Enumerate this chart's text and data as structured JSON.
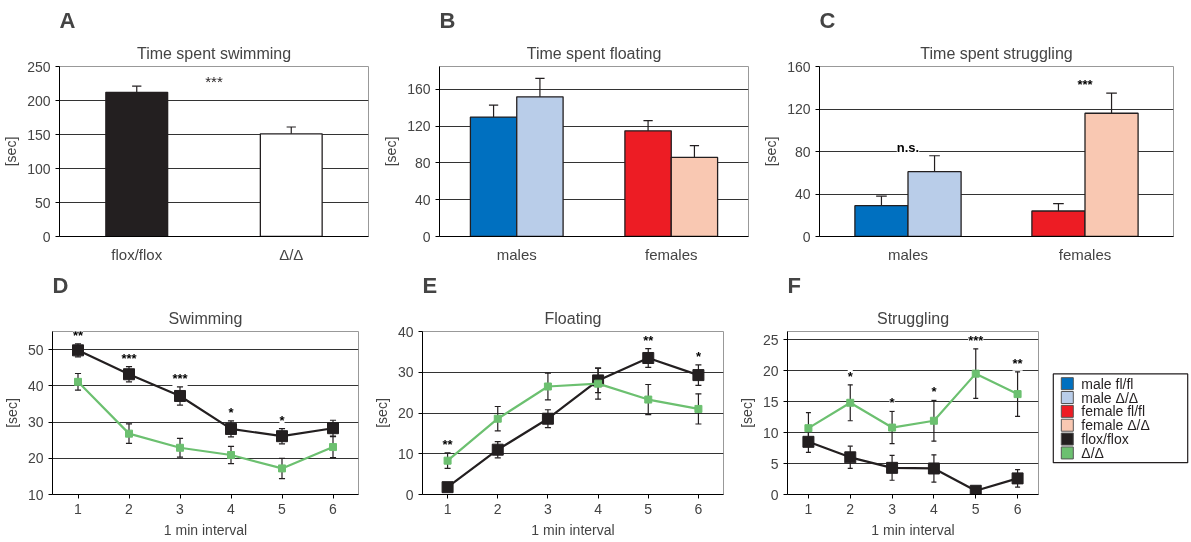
{
  "chart_data": [
    {
      "type": "bar",
      "title": "Time spent swimming",
      "ylabel": "[sec]",
      "categories": [
        "flox/flox",
        "Δ/Δ"
      ],
      "values": [
        212,
        151
      ],
      "errors": [
        9,
        10
      ],
      "colors": [
        "#231f20",
        "#ffffff"
      ],
      "ylim": [
        0,
        250
      ],
      "yticks": [
        0,
        50,
        100,
        150,
        200,
        250
      ],
      "grid": "y",
      "annotations": [
        "A",
        "***"
      ]
    },
    {
      "type": "bar",
      "title": "Time spent floating",
      "ylabel": "[sec]",
      "categories": [
        "males",
        "females"
      ],
      "ylim": [
        0,
        185
      ],
      "yticks": [
        0,
        40,
        80,
        120,
        160
      ],
      "grid": "y",
      "legend": "bottom right",
      "series": [
        {
          "name": "male fl/fl",
          "color": "#0070c0",
          "values": [
            130,
            null
          ],
          "errors": [
            13,
            null
          ]
        },
        {
          "name": "male Δ/Δ",
          "color": "#b9cde9",
          "values": [
            152,
            null
          ],
          "errors": [
            20,
            null
          ]
        },
        {
          "name": "female fl/fl",
          "color": "#ed1c24",
          "values": [
            null,
            115
          ],
          "errors": [
            null,
            11
          ]
        },
        {
          "name": "female Δ/Δ",
          "color": "#f9c8b2",
          "values": [
            null,
            86
          ],
          "errors": [
            null,
            13
          ]
        }
      ],
      "annotations": [
        "B"
      ]
    },
    {
      "type": "bar",
      "title": "Time spent struggling",
      "ylabel": "[sec]",
      "categories": [
        "males",
        "females"
      ],
      "ylim": [
        0,
        160
      ],
      "yticks": [
        0,
        40,
        80,
        120,
        160
      ],
      "grid": "y",
      "series": [
        {
          "color": "#0070c0",
          "values": [
            29,
            null
          ],
          "errors": [
            9,
            null
          ]
        },
        {
          "color": "#b9cde9",
          "values": [
            61,
            null
          ],
          "errors": [
            15,
            null
          ]
        },
        {
          "color": "#ed1c24",
          "values": [
            null,
            24
          ],
          "errors": [
            null,
            7
          ]
        },
        {
          "color": "#f9c8b2",
          "values": [
            null,
            116
          ],
          "errors": [
            null,
            19
          ]
        }
      ],
      "annotations": [
        "C",
        {
          "text": "n.s.",
          "x": "males",
          "y": 61
        },
        {
          "text": "***",
          "x": "females",
          "y": 116
        }
      ]
    },
    {
      "type": "line",
      "title": "Swimming",
      "xlabel": "1 min interval",
      "ylabel": "[sec]",
      "x": [
        1,
        2,
        3,
        4,
        5,
        6
      ],
      "xlim": [
        0.5,
        6.5
      ],
      "xticks": [
        1,
        2,
        3,
        4,
        5,
        6
      ],
      "ylim": [
        10,
        55
      ],
      "yticks": [
        10,
        20,
        30,
        40,
        50
      ],
      "grid": "y",
      "marker": "square",
      "series": [
        {
          "color": "#231f20",
          "values": [
            49.8,
            43.2,
            37.2,
            28.1,
            26.1,
            28.3
          ],
          "errors": [
            1.8,
            2.1,
            2.5,
            2.2,
            2.1,
            2.2
          ]
        },
        {
          "color": "#6cc070",
          "values": [
            41.1,
            26.8,
            22.9,
            20.9,
            17.2,
            23.1
          ],
          "errors": [
            2.3,
            2.7,
            2.6,
            2.4,
            2.8,
            2.9
          ]
        }
      ],
      "annotations": [
        "D",
        {
          "text": "**",
          "x": 1,
          "y": 49.8
        },
        {
          "text": "***",
          "x": 2,
          "y": 43.2
        },
        {
          "text": "***",
          "x": 3,
          "y": 37.2
        },
        {
          "text": "*",
          "x": 4,
          "y": 28.1
        },
        {
          "text": "*",
          "x": 5,
          "y": 26.1
        }
      ]
    },
    {
      "type": "line",
      "title": "Floating",
      "xlabel": "1 min interval",
      "ylabel": "[sec]",
      "x": [
        1,
        2,
        3,
        4,
        5,
        6
      ],
      "xlim": [
        0.5,
        6.5
      ],
      "xticks": [
        1,
        2,
        3,
        4,
        5,
        6
      ],
      "ylim": [
        0,
        40
      ],
      "yticks": [
        0,
        10,
        20,
        30,
        40
      ],
      "grid": "y",
      "marker": "square",
      "series": [
        {
          "color": "#231f20",
          "values": [
            1.8,
            11,
            18.6,
            28,
            33.5,
            29.3
          ],
          "errors": [
            0.5,
            2,
            2.2,
            3,
            2.3,
            2.5
          ]
        },
        {
          "color": "#6cc070",
          "values": [
            8.3,
            18.6,
            26.5,
            27.2,
            23.3,
            21
          ],
          "errors": [
            1.9,
            3,
            3.3,
            3.8,
            3.7,
            3.7
          ]
        }
      ],
      "annotations": [
        "E",
        {
          "text": "**",
          "x": 1,
          "y": 8.3
        },
        {
          "text": "**",
          "x": 5,
          "y": 33.5
        },
        {
          "text": "*",
          "x": 6,
          "y": 29.3
        }
      ]
    },
    {
      "type": "line",
      "title": "Struggling",
      "xlabel": "1 min interval",
      "ylabel": "[sec]",
      "x": [
        1,
        2,
        3,
        4,
        5,
        6
      ],
      "xlim": [
        0.5,
        6.5
      ],
      "xticks": [
        1,
        2,
        3,
        4,
        5,
        6
      ],
      "ylim": [
        0,
        26.3
      ],
      "yticks": [
        0,
        5,
        10,
        15,
        20,
        25
      ],
      "grid": "y",
      "marker": "square",
      "legend": "right",
      "series": [
        {
          "name": "flox/flox",
          "color": "#231f20",
          "values": [
            8.5,
            6,
            4.3,
            4.2,
            0.6,
            2.6
          ],
          "errors": [
            1.7,
            1.8,
            2,
            2.2,
            0.3,
            1.4
          ]
        },
        {
          "name": "Δ/Δ",
          "color": "#6cc070",
          "values": [
            10.7,
            14.8,
            10.8,
            11.9,
            19.5,
            16.2
          ],
          "errors": [
            2.5,
            2.9,
            2.6,
            3.3,
            4,
            3.6
          ]
        }
      ],
      "annotations": [
        "F",
        {
          "text": "*",
          "x": 2,
          "y": 14.8
        },
        {
          "text": "*",
          "x": 3,
          "y": 10.8
        },
        {
          "text": "*",
          "x": 4,
          "y": 11.9
        },
        {
          "text": "***",
          "x": 5,
          "y": 19.5
        },
        {
          "text": "**",
          "x": 6,
          "y": 16.2
        }
      ]
    }
  ]
}
